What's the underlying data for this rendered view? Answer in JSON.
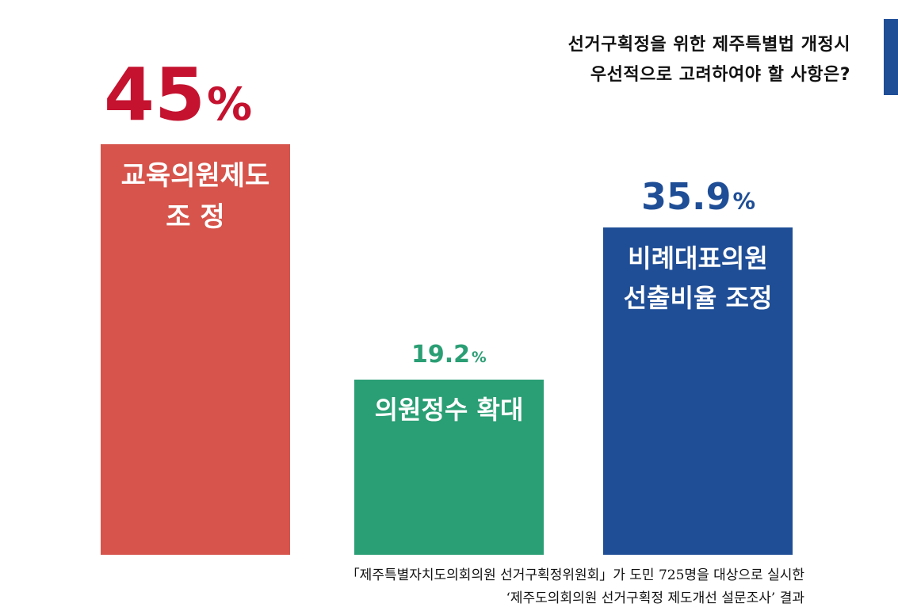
{
  "title": {
    "line1": "선거구획정을 위한 제주특별법 개정시",
    "line2": "우선적으로 고려하여야 할 사항은?"
  },
  "source": {
    "line1": "「제주특별자치도의회의원 선거구획정위원회」가 도민 725명을 대상으로 실시한",
    "line2": "‘제주도의회의원 선거구획정 제도개선 설문조사’ 결과"
  },
  "colors": {
    "accent": "#1f4e96"
  },
  "chart_data": {
    "type": "bar",
    "unit": "%",
    "categories": [
      "교육의원제도 조 정",
      "의원정수 확대",
      "비례대표의원 선출비율 조정"
    ],
    "values": [
      45,
      19.2,
      35.9
    ],
    "value_labels": [
      "45",
      "19.2",
      "35.9"
    ],
    "category_lines": [
      [
        "교육의원제도",
        "조  정"
      ],
      [
        "의원정수 확대"
      ],
      [
        "비례대표의원",
        "선출비율 조정"
      ]
    ],
    "bar_colors": [
      "#d6544b",
      "#2a9e74",
      "#1f4e96"
    ],
    "value_colors": [
      "#c4122f",
      "#2a9e74",
      "#1f4e96"
    ]
  }
}
